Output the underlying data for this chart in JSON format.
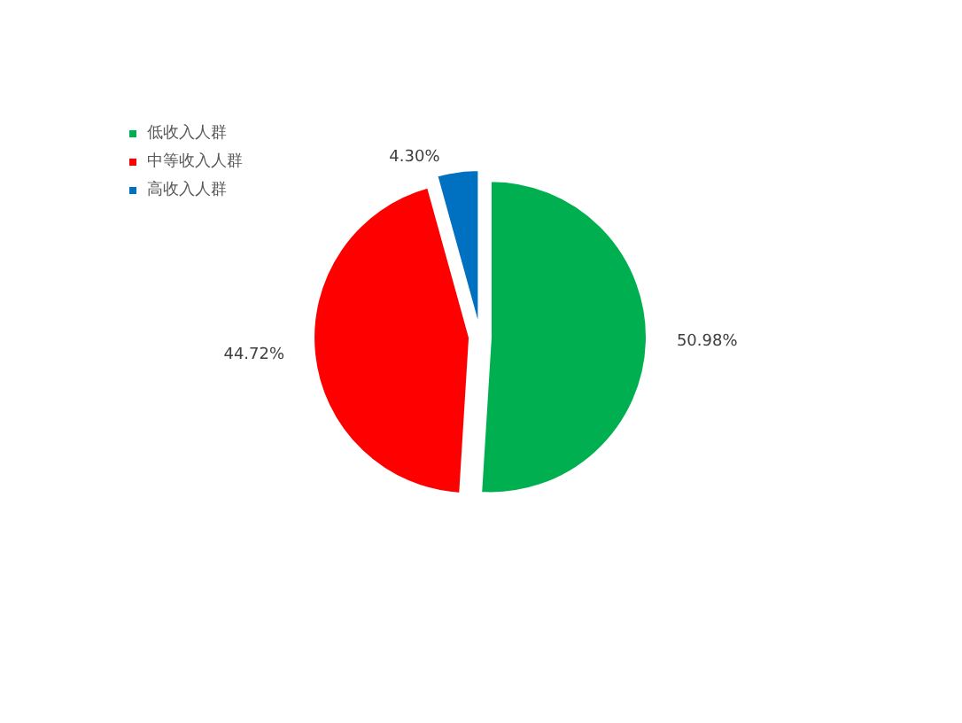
{
  "chart_data": {
    "type": "pie",
    "categories": [
      "低收入人群",
      "中等收入人群",
      "高收入人群"
    ],
    "values": [
      50.98,
      44.72,
      4.3
    ],
    "colors": [
      "#00b050",
      "#ff0000",
      "#0070c0"
    ],
    "value_labels": [
      "50.98%",
      "44.72%",
      "4.30%"
    ],
    "legend": "top left"
  }
}
